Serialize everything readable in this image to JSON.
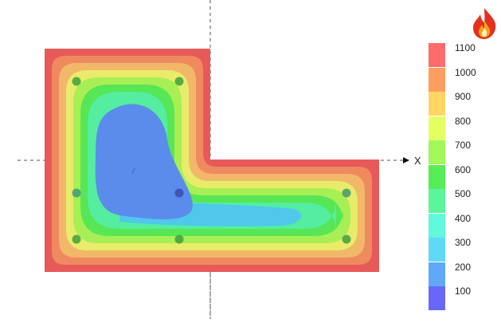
{
  "app": {
    "icon": "fire-icon"
  },
  "plot": {
    "axis_label": "X",
    "contour_colors": [
      "#e85a5a",
      "#ef8a5e",
      "#f2b86a",
      "#e8ec6a",
      "#a8ef55",
      "#56e656",
      "#55eda0",
      "#58e6d2",
      "#4fc8ea",
      "#58a7ee",
      "#5a8cec"
    ],
    "sensor_points": [
      {
        "id": "p1",
        "color": "#3fa03f"
      },
      {
        "id": "p2",
        "color": "#3fa03f"
      },
      {
        "id": "p3",
        "color": "#3f9a80"
      },
      {
        "id": "p4",
        "color": "#3f4aa8"
      },
      {
        "id": "p5",
        "color": "#3fa03f"
      },
      {
        "id": "p6",
        "color": "#3fa03f"
      },
      {
        "id": "p7",
        "color": "#3f9a70"
      },
      {
        "id": "p8",
        "color": "#3fa03f"
      }
    ]
  },
  "legend": {
    "items": [
      {
        "label": "1100",
        "color": "#fd6b6b"
      },
      {
        "label": "1000",
        "color": "#fd9e60"
      },
      {
        "label": "900",
        "color": "#ffd564"
      },
      {
        "label": "800",
        "color": "#e3ff60"
      },
      {
        "label": "700",
        "color": "#a2f75a"
      },
      {
        "label": "600",
        "color": "#58ec58"
      },
      {
        "label": "500",
        "color": "#5cf59b"
      },
      {
        "label": "400",
        "color": "#62f8db"
      },
      {
        "label": "300",
        "color": "#62d8f8"
      },
      {
        "label": "200",
        "color": "#62a8f8"
      },
      {
        "label": "100",
        "color": "#6868f8"
      }
    ]
  }
}
